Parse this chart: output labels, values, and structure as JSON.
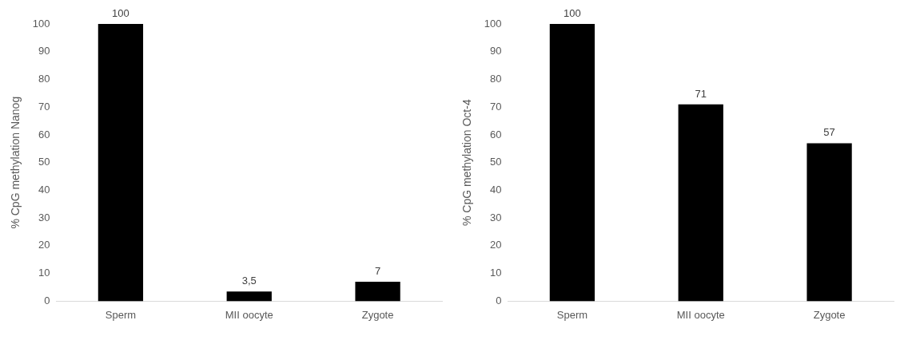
{
  "chart_data": [
    {
      "type": "bar",
      "ylabel": "% CpG methylation Nanog",
      "categories": [
        "Sperm",
        "MII oocyte",
        "Zygote"
      ],
      "values": [
        100,
        3.5,
        7
      ],
      "value_labels": [
        "100",
        "3,5",
        "7"
      ],
      "color": "#000000",
      "ylim": [
        0,
        100
      ],
      "yticks": [
        0,
        10,
        20,
        30,
        40,
        50,
        60,
        70,
        80,
        90,
        100
      ],
      "grid": false
    },
    {
      "type": "bar",
      "ylabel": "% CpG methylation Oct-4",
      "categories": [
        "Sperm",
        "MII oocyte",
        "Zygote"
      ],
      "values": [
        100,
        71,
        57
      ],
      "value_labels": [
        "100",
        "71",
        "57"
      ],
      "color": "#000000",
      "ylim": [
        0,
        100
      ],
      "yticks": [
        0,
        10,
        20,
        30,
        40,
        50,
        60,
        70,
        80,
        90,
        100
      ],
      "grid": false
    }
  ]
}
